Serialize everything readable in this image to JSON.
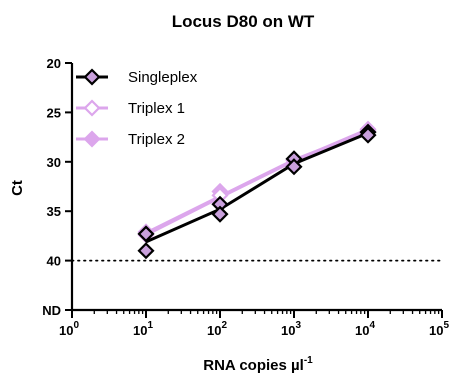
{
  "chart_data": {
    "type": "line",
    "title": "Locus D80 on WT",
    "xlabel": "RNA copies µl",
    "xlabel_superscript": "-1",
    "ylabel": "Ct",
    "x_scale": "log10",
    "y_inverted": true,
    "xlim": [
      1,
      100000
    ],
    "ylim": [
      20,
      45
    ],
    "x_ticks": [
      {
        "value": 1,
        "base": "10",
        "exp": "0"
      },
      {
        "value": 10,
        "base": "10",
        "exp": "1"
      },
      {
        "value": 100,
        "base": "10",
        "exp": "2"
      },
      {
        "value": 1000,
        "base": "10",
        "exp": "3"
      },
      {
        "value": 10000,
        "base": "10",
        "exp": "4"
      },
      {
        "value": 100000,
        "base": "10",
        "exp": "5"
      }
    ],
    "y_ticks": [
      {
        "value": 20,
        "label": "20"
      },
      {
        "value": 25,
        "label": "25"
      },
      {
        "value": 30,
        "label": "30"
      },
      {
        "value": 35,
        "label": "35"
      },
      {
        "value": 40,
        "label": "40"
      },
      {
        "value": 45,
        "label": "ND"
      }
    ],
    "reference_line": {
      "y": 40,
      "style": "dotted",
      "color": "#000000"
    },
    "legend_placement": "top-left",
    "series": [
      {
        "name": "Singleplex",
        "color": "#000000",
        "marker": "diamond",
        "marker_fill": "#c9a0dc",
        "marker_stroke": "#000000",
        "points": [
          {
            "x": 10,
            "y": 37.3
          },
          {
            "x": 10,
            "y": 39.0
          },
          {
            "x": 100,
            "y": 34.3
          },
          {
            "x": 100,
            "y": 35.3
          },
          {
            "x": 1000,
            "y": 29.7
          },
          {
            "x": 1000,
            "y": 30.5
          },
          {
            "x": 10000,
            "y": 27.0
          },
          {
            "x": 10000,
            "y": 27.3
          }
        ],
        "line": [
          {
            "x": 10,
            "y": 38.1
          },
          {
            "x": 100,
            "y": 34.8
          },
          {
            "x": 1000,
            "y": 30.2
          },
          {
            "x": 10000,
            "y": 27.1
          }
        ]
      },
      {
        "name": "Triplex 1",
        "color": "#dca6ec",
        "marker": "diamond-open",
        "marker_fill": "#ffffff",
        "marker_stroke": "#dca6ec",
        "points": [
          {
            "x": 10,
            "y": 37.4
          },
          {
            "x": 100,
            "y": 33.4
          },
          {
            "x": 1000,
            "y": 29.9
          },
          {
            "x": 10000,
            "y": 26.7
          }
        ],
        "line": [
          {
            "x": 10,
            "y": 37.4
          },
          {
            "x": 100,
            "y": 33.6
          },
          {
            "x": 1000,
            "y": 29.9
          },
          {
            "x": 10000,
            "y": 26.7
          }
        ]
      },
      {
        "name": "Triplex 2",
        "color": "#dca6ec",
        "marker": "diamond",
        "marker_fill": "#dca6ec",
        "marker_stroke": "#dca6ec",
        "points": [
          {
            "x": 10,
            "y": 37.1
          },
          {
            "x": 100,
            "y": 33.0
          },
          {
            "x": 1000,
            "y": 29.8
          },
          {
            "x": 10000,
            "y": 26.9
          }
        ],
        "line": [
          {
            "x": 10,
            "y": 37.2
          },
          {
            "x": 100,
            "y": 33.5
          },
          {
            "x": 1000,
            "y": 29.8
          },
          {
            "x": 10000,
            "y": 26.9
          }
        ]
      }
    ]
  }
}
